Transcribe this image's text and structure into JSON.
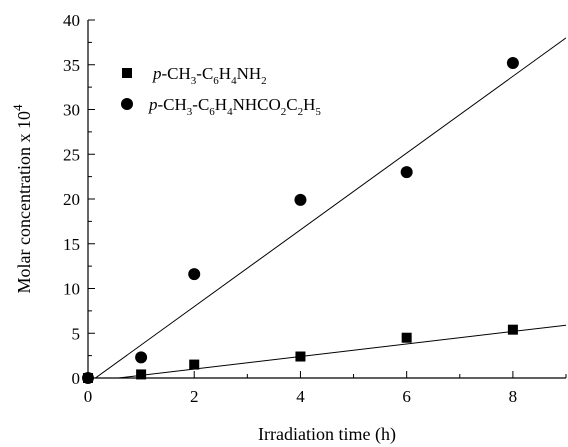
{
  "chart_data": {
    "type": "scatter",
    "xlabel": "Irradiation time (h)",
    "ylabel": "Molar concentration  x 10",
    "ylabel_exponent": "4",
    "xlim": [
      0,
      9
    ],
    "ylim": [
      0,
      40
    ],
    "x_ticks": [
      "0",
      "2",
      "4",
      "6",
      "8"
    ],
    "y_ticks": [
      "0",
      "5",
      "10",
      "15",
      "20",
      "25",
      "30",
      "35",
      "40"
    ],
    "grid": false,
    "legend_position": "top-left",
    "series": [
      {
        "name": "p-CH3-C6H4NH2",
        "legend_parts": [
          {
            "text": "p",
            "style": "italic"
          },
          {
            "text": "-CH"
          },
          {
            "text": "3",
            "style": "sub"
          },
          {
            "text": "-C"
          },
          {
            "text": "6",
            "style": "sub"
          },
          {
            "text": "H"
          },
          {
            "text": "4",
            "style": "sub"
          },
          {
            "text": "NH"
          },
          {
            "text": "2",
            "style": "sub"
          }
        ],
        "marker": "square",
        "x": [
          0,
          1,
          2,
          4,
          6,
          8
        ],
        "y": [
          0,
          0.4,
          1.5,
          2.4,
          4.5,
          5.4
        ],
        "fit_line": {
          "x": [
            0,
            9
          ],
          "y": [
            -0.4,
            5.9
          ]
        }
      },
      {
        "name": "p-CH3-C6H4NHCO2C2H5",
        "legend_parts": [
          {
            "text": "p",
            "style": "italic"
          },
          {
            "text": "-CH"
          },
          {
            "text": "3",
            "style": "sub"
          },
          {
            "text": "-C"
          },
          {
            "text": "6",
            "style": "sub"
          },
          {
            "text": "H"
          },
          {
            "text": "4",
            "style": "sub"
          },
          {
            "text": "NHCO"
          },
          {
            "text": "2",
            "style": "sub"
          },
          {
            "text": "C"
          },
          {
            "text": "2",
            "style": "sub"
          },
          {
            "text": "H"
          },
          {
            "text": "5",
            "style": "sub"
          }
        ],
        "marker": "circle",
        "x": [
          0,
          1,
          2,
          4,
          6,
          8
        ],
        "y": [
          0,
          2.3,
          11.6,
          19.9,
          23.0,
          35.2
        ],
        "fit_line": {
          "x": [
            0,
            9
          ],
          "y": [
            -0.6,
            38.0
          ]
        }
      }
    ]
  }
}
